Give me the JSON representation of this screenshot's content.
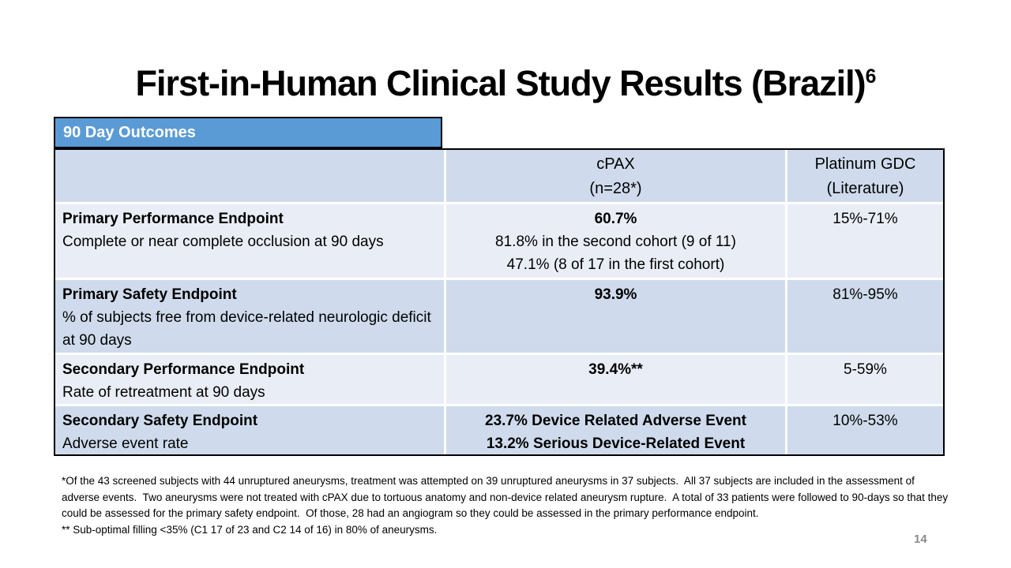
{
  "slide": {
    "title": "First-in-Human Clinical Study Results (Brazil)",
    "title_superscript": "6",
    "page_number": "14"
  },
  "outcomes_table": {
    "section_header": "90 Day Outcomes",
    "column_headers": {
      "cpax_line1": "cPAX",
      "cpax_line2": "(n=28*)",
      "gdc_line1": "Platinum GDC",
      "gdc_line2": "(Literature)"
    },
    "rows": [
      {
        "endpoint": "Primary Performance Endpoint",
        "description": "Complete or near complete occlusion at 90 days",
        "cpax_result": "60.7%",
        "cpax_detail1": "81.8% in the second cohort (9 of 11)",
        "cpax_detail2": "47.1% (8 of 17 in the first cohort)",
        "gdc_result": "15%-71%"
      },
      {
        "endpoint": "Primary Safety Endpoint",
        "description": "% of subjects free from device-related neurologic deficit at 90 days",
        "cpax_result": "93.9%",
        "gdc_result": "81%-95%"
      },
      {
        "endpoint": "Secondary Performance Endpoint",
        "description": "Rate of retreatment at 90 days",
        "cpax_result": "39.4%**",
        "gdc_result": "5-59%"
      },
      {
        "endpoint": "Secondary Safety Endpoint",
        "description": "Adverse event rate",
        "cpax_result": "23.7% Device Related Adverse Event",
        "cpax_result_line2": "13.2% Serious Device-Related Event",
        "gdc_result": "10%-53%"
      }
    ]
  },
  "footnotes": {
    "note_asterisk": "*Of the 43 screened subjects with 44 unruptured aneurysms, treatment was attempted on 39 unruptured aneurysms in 37 subjects.  All 37 subjects are included in the assessment of adverse events.  Two aneurysms were not treated with cPAX due to tortuous anatomy and non-device related aneurysm rupture.  A total of 33 patients were followed to 90-days so that they could be assessed for the primary safety endpoint.  Of those, 28 had an angiogram so they could be assessed in the primary performance endpoint.",
    "note_double_asterisk": "** Sub-optimal filling <35% (C1 17 of 23 and C2 14 of 16) in 80% of aneurysms."
  },
  "colors": {
    "section_header_bg": "#5b9bd5",
    "row_shaded_bg": "#cfdbec",
    "row_light_bg": "#e9eef6",
    "table_border": "#000000",
    "page_number_color": "#8b8b8b"
  }
}
